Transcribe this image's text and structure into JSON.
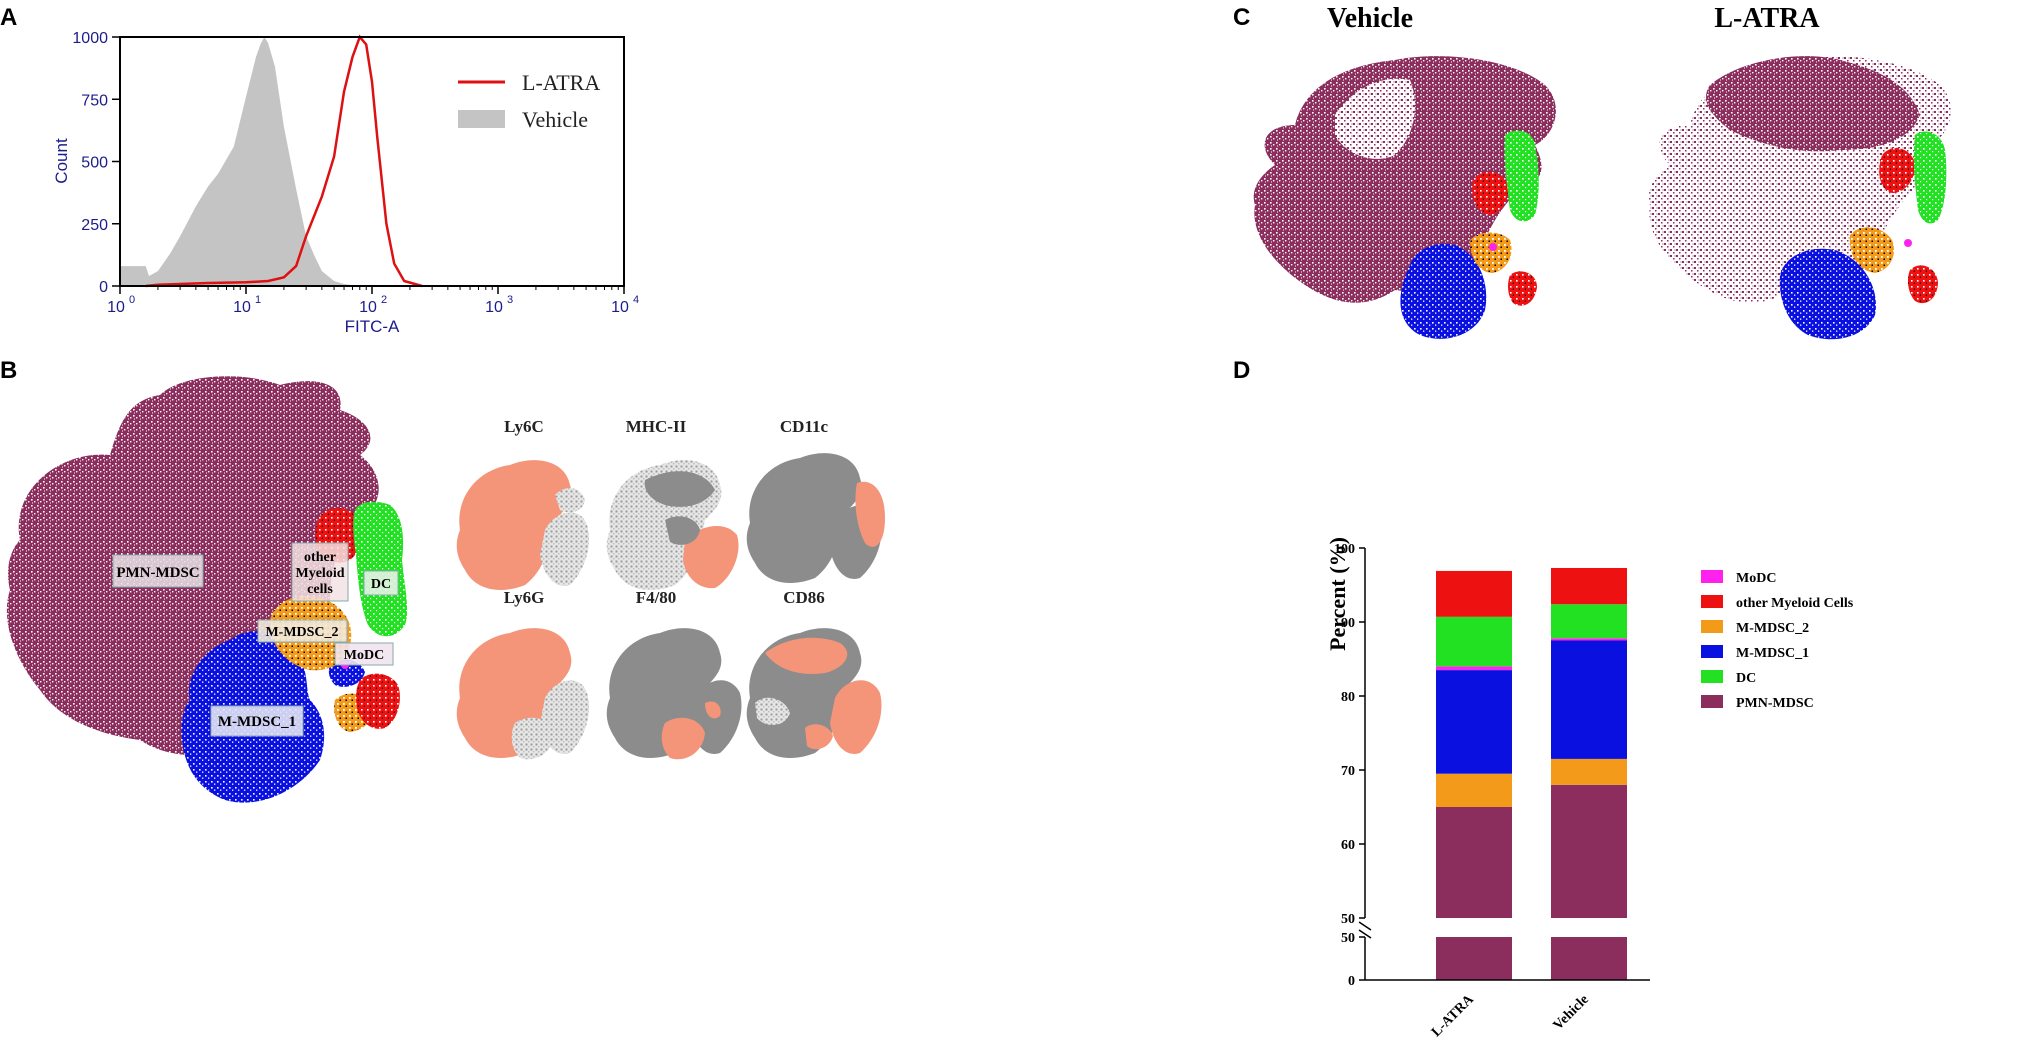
{
  "panel_labels": {
    "A": "A",
    "B": "B",
    "C": "C",
    "D": "D"
  },
  "colors": {
    "pmn": "#8b2e5e",
    "mono1": "#0a10e0",
    "mono2": "#f39a1b",
    "dc": "#22e022",
    "other": "#ee1111",
    "modc": "#ff22ee",
    "salmon": "#f4957a",
    "gray": "#8c8c8c",
    "lightgray": "#c8c8c8",
    "hist_red": "#dd1111",
    "hist_fill": "#c4c4c4",
    "axis_blue": "#1c1c8c"
  },
  "chart_data": [
    {
      "panel": "A",
      "type": "area",
      "title": "",
      "xlabel": "FITC-A",
      "ylabel": "Count",
      "xscale": "log",
      "xlim": [
        1,
        10000
      ],
      "ylim": [
        0,
        1000
      ],
      "x_ticks": [
        {
          "base": "10",
          "exp": "0"
        },
        {
          "base": "10",
          "exp": "1"
        },
        {
          "base": "10",
          "exp": "2"
        },
        {
          "base": "10",
          "exp": "3"
        },
        {
          "base": "10",
          "exp": "4"
        }
      ],
      "y_ticks": [
        "0",
        "250",
        "500",
        "750",
        "1000"
      ],
      "legend": {
        "position": "top-right",
        "items": [
          "L-ATRA",
          "Vehicle"
        ]
      },
      "series": [
        {
          "name": "Vehicle",
          "style": "filled",
          "x": [
            1,
            1.6,
            1.7,
            2,
            2.5,
            3,
            4,
            5,
            6,
            8,
            10,
            12,
            13,
            14,
            15,
            17,
            20,
            25,
            30,
            35,
            40,
            50,
            60,
            80
          ],
          "y": [
            80,
            80,
            40,
            60,
            130,
            200,
            320,
            400,
            450,
            560,
            760,
            920,
            970,
            1000,
            975,
            880,
            640,
            390,
            200,
            120,
            60,
            20,
            8,
            0
          ]
        },
        {
          "name": "L-ATRA",
          "style": "line",
          "x": [
            1.6,
            2,
            3,
            5,
            10,
            15,
            20,
            25,
            30,
            40,
            50,
            60,
            70,
            80,
            90,
            100,
            110,
            130,
            150,
            180,
            250
          ],
          "y": [
            0,
            5,
            8,
            12,
            15,
            20,
            35,
            80,
            200,
            360,
            520,
            780,
            920,
            1000,
            970,
            820,
            600,
            250,
            90,
            20,
            0
          ]
        }
      ]
    },
    {
      "panel": "D",
      "type": "bar",
      "stacked": true,
      "title": "",
      "xlabel": "",
      "ylabel": "Percent (%)",
      "ylim": [
        50,
        100
      ],
      "y_break": {
        "lower_range": [
          0,
          50
        ],
        "lower_ticks": [
          "0",
          "50"
        ]
      },
      "y_ticks": [
        "50",
        "60",
        "70",
        "80",
        "90",
        "100"
      ],
      "categories": [
        "L-ATRA",
        "Vehicle"
      ],
      "series": [
        {
          "name": "PMN-MDSC",
          "values": [
            65.0,
            68.0
          ]
        },
        {
          "name": "M-MDSC_2",
          "values": [
            4.5,
            3.5
          ]
        },
        {
          "name": "M-MDSC_1",
          "values": [
            14.0,
            16.0
          ]
        },
        {
          "name": "MoDC",
          "values": [
            0.5,
            0.3
          ]
        },
        {
          "name": "DC",
          "values": [
            6.7,
            4.6
          ]
        },
        {
          "name": "other Myeloid Cells",
          "values": [
            6.2,
            4.9
          ]
        }
      ],
      "legend": {
        "position": "right",
        "items": [
          "MoDC",
          "other Myeloid Cells",
          "M-MDSC_2",
          "M-MDSC_1",
          "DC",
          "PMN-MDSC"
        ]
      }
    }
  ],
  "panelB": {
    "cluster_labels": {
      "pmn": "PMN-MDSC",
      "other_line1": "other",
      "other_line2": "Myeloid",
      "other_line3": "cells",
      "dc": "DC",
      "mono2": "M-MDSC_2",
      "modc": "MoDC",
      "mono1": "M-MDSC_1"
    },
    "markers": [
      "Ly6C",
      "MHC-II",
      "CD11c",
      "Ly6G",
      "F4/80",
      "CD86"
    ]
  },
  "panelC": {
    "titles": [
      "Vehicle",
      "L-ATRA"
    ]
  }
}
